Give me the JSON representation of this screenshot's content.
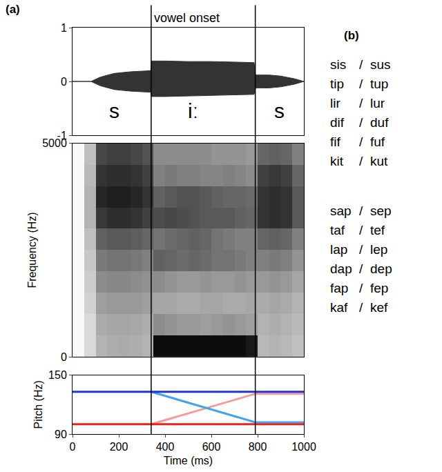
{
  "panel_labels": [
    "(a)",
    "(b)"
  ],
  "word_list": {
    "separator": "/",
    "groups": [
      [
        [
          "sis",
          "sus"
        ],
        [
          "tip",
          "tup"
        ],
        [
          "lir",
          "lur"
        ],
        [
          "dif",
          "duf"
        ],
        [
          "fif",
          "fuf"
        ],
        [
          "kit",
          "kut"
        ]
      ],
      [
        [
          "sap",
          "sep"
        ],
        [
          "taf",
          "tef"
        ],
        [
          "lap",
          "lep"
        ],
        [
          "dap",
          "dep"
        ],
        [
          "fap",
          "fep"
        ],
        [
          "kaf",
          "kef"
        ]
      ]
    ]
  },
  "chart_data": [
    {
      "type": "area",
      "color": "#333333",
      "grid": false,
      "tick_labels": "y",
      "xlim": [
        0,
        1000
      ],
      "ylim": [
        -1,
        1
      ],
      "yticks": [
        -1,
        0,
        1
      ],
      "x": [
        0,
        80,
        120,
        180,
        250,
        320,
        338,
        342,
        400,
        500,
        600,
        700,
        785,
        789,
        793,
        850,
        900,
        960,
        1000
      ],
      "series": [
        {
          "values": [
            0,
            0,
            -0.08,
            -0.15,
            -0.18,
            -0.2,
            -0.2,
            -0.28,
            -0.28,
            -0.27,
            -0.26,
            -0.25,
            -0.24,
            -0.15,
            -0.12,
            -0.12,
            -0.1,
            -0.05,
            0
          ]
        },
        {
          "values": [
            0,
            0,
            0.08,
            0.15,
            0.18,
            0.2,
            0.2,
            0.38,
            0.38,
            0.37,
            0.37,
            0.36,
            0.35,
            0.15,
            0.12,
            0.12,
            0.1,
            0.05,
            0
          ]
        }
      ],
      "labels": [
        {
          "text": "s",
          "x": 180,
          "y": -0.55
        },
        {
          "text": "iː",
          "x": 520,
          "y": -0.55
        },
        {
          "text": "s",
          "x": 895,
          "y": -0.55
        }
      ],
      "boundaries": [
        {
          "x": 340,
          "label": "vowel onset"
        },
        {
          "x": 790
        }
      ]
    },
    {
      "type": "heatmap",
      "grid": false,
      "tick_labels": "y",
      "y_label": "Frequency (Hz)",
      "xlim": [
        0,
        1000
      ],
      "ylim": [
        0,
        5000
      ],
      "yticks": [
        0,
        5000
      ],
      "cells": {
        "x": [
          25,
          75,
          125,
          175,
          225,
          275,
          325,
          375,
          425,
          475,
          525,
          575,
          625,
          675,
          725,
          775,
          825,
          875,
          925,
          975
        ],
        "y": [
          250,
          750,
          1250,
          1750,
          2250,
          2750,
          3250,
          3750,
          4250,
          4750
        ],
        "z": [
          [
            0.02,
            0.15,
            0.3,
            0.32,
            0.33,
            0.32,
            0.3,
            0.95,
            0.95,
            0.95,
            0.95,
            0.95,
            0.95,
            0.95,
            0.95,
            0.9,
            0.28,
            0.3,
            0.28,
            0.25
          ],
          [
            0.02,
            0.15,
            0.33,
            0.35,
            0.35,
            0.34,
            0.32,
            0.45,
            0.42,
            0.4,
            0.4,
            0.38,
            0.4,
            0.42,
            0.4,
            0.38,
            0.3,
            0.32,
            0.3,
            0.27
          ],
          [
            0.02,
            0.18,
            0.38,
            0.4,
            0.4,
            0.4,
            0.38,
            0.35,
            0.35,
            0.33,
            0.33,
            0.35,
            0.35,
            0.33,
            0.33,
            0.35,
            0.33,
            0.35,
            0.33,
            0.3
          ],
          [
            0.02,
            0.2,
            0.45,
            0.47,
            0.47,
            0.45,
            0.43,
            0.45,
            0.42,
            0.4,
            0.4,
            0.42,
            0.4,
            0.4,
            0.42,
            0.4,
            0.4,
            0.42,
            0.4,
            0.35
          ],
          [
            0.02,
            0.22,
            0.52,
            0.55,
            0.55,
            0.53,
            0.5,
            0.62,
            0.6,
            0.58,
            0.6,
            0.58,
            0.55,
            0.55,
            0.52,
            0.5,
            0.5,
            0.52,
            0.5,
            0.42
          ],
          [
            0.02,
            0.25,
            0.62,
            0.65,
            0.65,
            0.63,
            0.6,
            0.55,
            0.58,
            0.6,
            0.62,
            0.6,
            0.55,
            0.52,
            0.5,
            0.5,
            0.6,
            0.62,
            0.6,
            0.5
          ],
          [
            0.02,
            0.3,
            0.78,
            0.82,
            0.82,
            0.8,
            0.75,
            0.7,
            0.72,
            0.7,
            0.68,
            0.65,
            0.65,
            0.65,
            0.62,
            0.6,
            0.8,
            0.82,
            0.8,
            0.65
          ],
          [
            0.02,
            0.3,
            0.85,
            0.88,
            0.88,
            0.85,
            0.8,
            0.62,
            0.65,
            0.68,
            0.68,
            0.65,
            0.62,
            0.6,
            0.6,
            0.58,
            0.8,
            0.82,
            0.8,
            0.65
          ],
          [
            0.02,
            0.28,
            0.8,
            0.82,
            0.82,
            0.8,
            0.75,
            0.5,
            0.52,
            0.5,
            0.5,
            0.48,
            0.48,
            0.5,
            0.48,
            0.45,
            0.75,
            0.78,
            0.75,
            0.6
          ],
          [
            0.02,
            0.25,
            0.72,
            0.75,
            0.75,
            0.72,
            0.68,
            0.45,
            0.45,
            0.45,
            0.45,
            0.45,
            0.42,
            0.42,
            0.42,
            0.4,
            0.6,
            0.62,
            0.6,
            0.5
          ]
        ]
      }
    },
    {
      "type": "line",
      "grid": false,
      "x_label": "Time (ms)",
      "y_label": "Pitch (Hz)",
      "xlim": [
        0,
        1000
      ],
      "xticks": [
        0,
        200,
        400,
        600,
        800,
        1000
      ],
      "ylim": [
        90,
        150
      ],
      "yticks": [
        90,
        150
      ],
      "x": [
        0,
        340,
        790,
        1000
      ],
      "series": [
        {
          "color": "#f49a9a",
          "values": [
            null,
            100,
            131,
            131
          ]
        },
        {
          "color": "#40a4f0",
          "values": [
            null,
            133,
            102,
            102
          ]
        },
        {
          "color": "#e8231f",
          "values": [
            100,
            100,
            100,
            100
          ]
        },
        {
          "color": "#2036d8",
          "values": [
            133,
            133,
            133,
            133
          ]
        }
      ]
    }
  ]
}
